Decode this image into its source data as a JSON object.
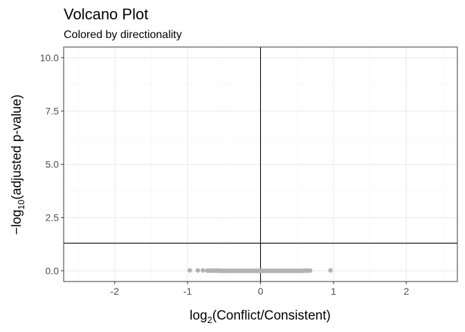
{
  "chart_data": {
    "type": "scatter",
    "title": "Volcano Plot",
    "subtitle": "Colored by directionality",
    "xlabel": {
      "prefix": "log",
      "subscript": "2",
      "open": "(",
      "numerator": "Conflict",
      "slash": "/",
      "denominator": "Consistent",
      "close": ")"
    },
    "ylabel": {
      "prefix": "−log",
      "subscript": "10",
      "open": "(",
      "text": "adjusted p-value",
      "close": ")"
    },
    "xlim": [
      -2.7,
      2.7
    ],
    "ylim": [
      -0.5,
      10.5
    ],
    "x_ticks": [
      -2,
      -1,
      0,
      1,
      2
    ],
    "x_tick_labels": [
      "-2",
      "-1",
      "0",
      "1",
      "2"
    ],
    "y_ticks": [
      0,
      2.5,
      5,
      7.5,
      10
    ],
    "y_tick_labels": [
      "0.0",
      "2.5",
      "5.0",
      "7.5",
      "10.0"
    ],
    "grid": true,
    "reference_lines": {
      "vertical_x": 0,
      "horizontal_y": 1.3
    },
    "colors": {
      "points": "#b3b3b3",
      "grid_major": "#ebebeb",
      "grid_minor": "#f4f4f4",
      "panel_border": "#333333",
      "reference_line": "#000000"
    },
    "series": [
      {
        "x": [
          -0.97,
          -0.86,
          -0.79,
          -0.73,
          -0.7,
          -0.68,
          -0.66,
          -0.64,
          -0.62,
          -0.6,
          -0.58,
          -0.56,
          -0.54,
          -0.52,
          -0.5,
          -0.48,
          -0.46,
          -0.44,
          -0.42,
          -0.4,
          -0.38,
          -0.36,
          -0.34,
          -0.32,
          -0.3,
          -0.28,
          -0.26,
          -0.24,
          -0.22,
          -0.2,
          -0.18,
          -0.16,
          -0.14,
          -0.12,
          -0.1,
          -0.08,
          -0.06,
          -0.04,
          -0.02,
          0.0,
          0.02,
          0.04,
          0.06,
          0.08,
          0.1,
          0.12,
          0.14,
          0.16,
          0.18,
          0.2,
          0.22,
          0.24,
          0.26,
          0.28,
          0.3,
          0.32,
          0.34,
          0.36,
          0.38,
          0.4,
          0.42,
          0.44,
          0.46,
          0.48,
          0.5,
          0.52,
          0.54,
          0.56,
          0.58,
          0.6,
          0.62,
          0.64,
          0.66,
          0.68,
          0.96
        ],
        "y": [
          0.02,
          0.02,
          0.02,
          0.01,
          0.01,
          0.01,
          0.01,
          0.01,
          0.01,
          0.01,
          0.01,
          0.0,
          0.0,
          0.0,
          0.0,
          0.0,
          0.0,
          0.0,
          0.0,
          0.0,
          0.0,
          0.0,
          0.0,
          0.0,
          0.0,
          0.0,
          0.0,
          0.0,
          0.0,
          0.0,
          0.0,
          0.0,
          0.0,
          0.0,
          0.0,
          0.0,
          0.0,
          0.0,
          0.0,
          0.0,
          0.0,
          0.0,
          0.0,
          0.0,
          0.0,
          0.0,
          0.0,
          0.0,
          0.0,
          0.0,
          0.0,
          0.0,
          0.0,
          0.0,
          0.0,
          0.0,
          0.0,
          0.0,
          0.0,
          0.0,
          0.0,
          0.0,
          0.0,
          0.0,
          0.0,
          0.0,
          0.0,
          0.0,
          0.0,
          0.01,
          0.01,
          0.01,
          0.01,
          0.01,
          0.02
        ]
      }
    ]
  }
}
